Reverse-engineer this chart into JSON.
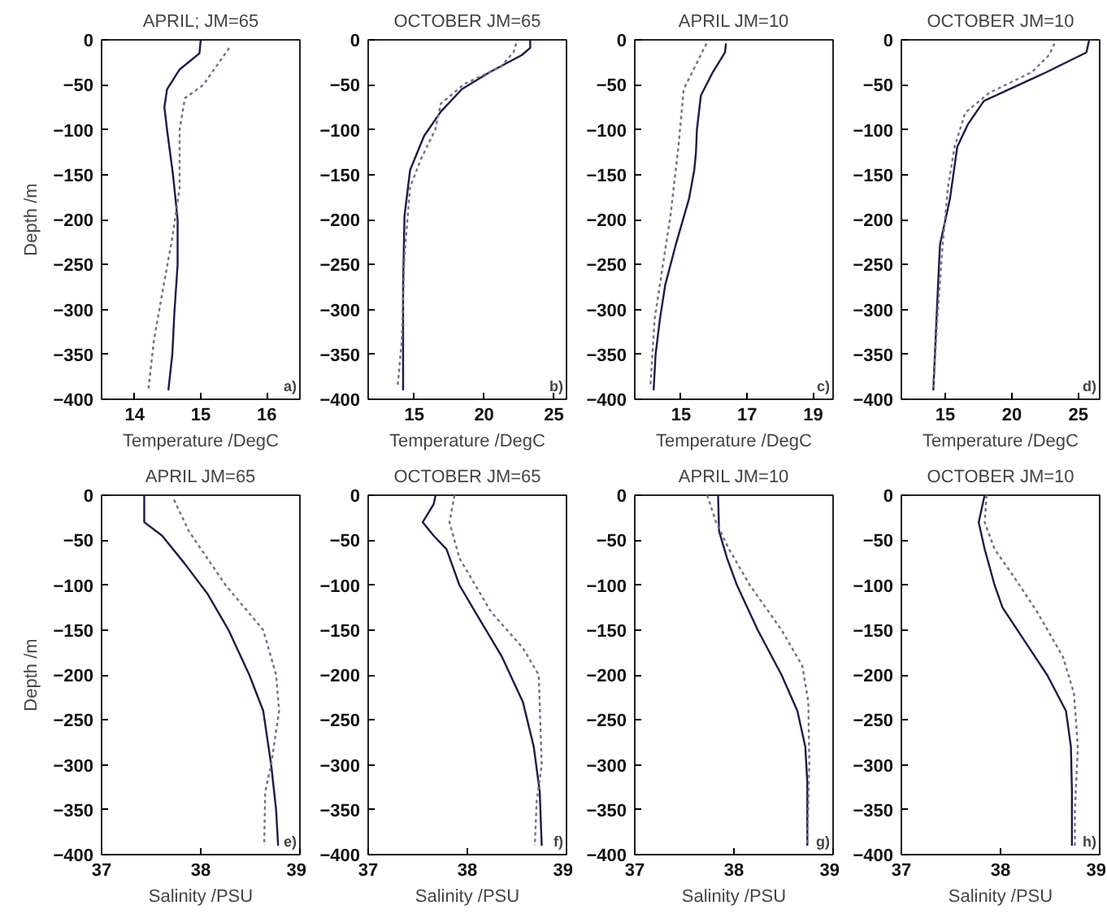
{
  "chart_data": [
    {
      "type": "line",
      "title": "APRIL; JM=65",
      "xlabel": "Temperature /DegC",
      "ylabel": "Depth /m",
      "xlim": [
        13.5,
        16.5
      ],
      "xticks": [
        14,
        15,
        16
      ],
      "ylim": [
        -400,
        0
      ],
      "yticks": [
        0,
        -50,
        -100,
        -150,
        -200,
        -250,
        -300,
        -350,
        -400
      ],
      "grid": false,
      "annotations": [
        "a)"
      ],
      "series": [
        {
          "color": "#1c1c48",
          "line_style": "solid",
          "x": [
            15.0,
            14.98,
            14.68,
            14.49,
            14.45,
            14.49,
            14.58,
            14.65,
            14.65,
            14.6,
            14.57,
            14.51
          ],
          "values": [
            0,
            -15,
            -33,
            -55,
            -75,
            -100,
            -150,
            -200,
            -250,
            -305,
            -350,
            -390
          ]
        },
        {
          "color": "#70708c",
          "line_style": "dotted",
          "x": [
            15.43,
            15.04,
            14.76,
            14.68,
            14.68,
            14.57,
            14.41,
            14.29,
            14.21
          ],
          "values": [
            -9,
            -50,
            -65,
            -100,
            -165,
            -220,
            -285,
            -335,
            -388
          ]
        }
      ]
    },
    {
      "type": "line",
      "title": "OCTOBER JM=65",
      "xlabel": "Temperature /DegC",
      "xlim": [
        11.7,
        25.9
      ],
      "xticks": [
        15,
        20,
        25
      ],
      "ylim": [
        -400,
        0
      ],
      "yticks": [
        0,
        -50,
        -100,
        -150,
        -200,
        -250,
        -300,
        -350,
        -400
      ],
      "grid": false,
      "annotations": [
        "b)"
      ],
      "series": [
        {
          "color": "#1c1c48",
          "line_style": "solid",
          "x": [
            23.3,
            23.3,
            22.7,
            20.4,
            18.4,
            16.9,
            15.7,
            14.7,
            14.3,
            14.2,
            14.2
          ],
          "values": [
            0,
            -9,
            -17,
            -36,
            -55,
            -80,
            -107,
            -145,
            -196,
            -272,
            -390
          ]
        },
        {
          "color": "#70708c",
          "line_style": "dotted",
          "x": [
            22.3,
            22.1,
            21.2,
            18.6,
            16.9,
            16.5,
            15.5,
            14.7,
            14.3,
            14.1,
            13.8
          ],
          "values": [
            -4,
            -14,
            -30,
            -49,
            -71,
            -100,
            -132,
            -164,
            -240,
            -336,
            -387
          ]
        }
      ]
    },
    {
      "type": "line",
      "title": "APRIL JM=10",
      "xlabel": "Temperature /DegC",
      "xlim": [
        13.6,
        19.6
      ],
      "xticks": [
        15,
        17,
        19
      ],
      "ylim": [
        -400,
        0
      ],
      "yticks": [
        0,
        -50,
        -100,
        -150,
        -200,
        -250,
        -300,
        -350,
        -400
      ],
      "grid": false,
      "annotations": [
        "c)"
      ],
      "series": [
        {
          "color": "#1c1c48",
          "line_style": "solid",
          "x": [
            16.36,
            16.33,
            15.96,
            15.6,
            15.48,
            15.45,
            15.4,
            15.24,
            14.84,
            14.52,
            14.36,
            14.23,
            14.17
          ],
          "values": [
            -4,
            -14,
            -36,
            -62,
            -100,
            -126,
            -145,
            -177,
            -228,
            -273,
            -311,
            -350,
            -390
          ]
        },
        {
          "color": "#70708c",
          "line_style": "dotted",
          "x": [
            15.77,
            15.08,
            14.92,
            14.68,
            14.44,
            14.2,
            14.07
          ],
          "values": [
            -4,
            -55,
            -119,
            -196,
            -253,
            -311,
            -387
          ]
        }
      ]
    },
    {
      "type": "line",
      "title": "OCTOBER JM=10",
      "xlabel": "Temperature /DegC",
      "xlim": [
        11.7,
        26.6
      ],
      "xticks": [
        15,
        20,
        25
      ],
      "ylim": [
        -400,
        0
      ],
      "yticks": [
        0,
        -50,
        -100,
        -150,
        -200,
        -250,
        -300,
        -350,
        -400
      ],
      "grid": false,
      "annotations": [
        "d)"
      ],
      "series": [
        {
          "color": "#1c1c48",
          "line_style": "solid",
          "x": [
            25.8,
            25.6,
            22.6,
            17.9,
            16.7,
            15.9,
            15.35,
            14.6,
            14.4,
            14.1
          ],
          "values": [
            -1,
            -14,
            -36,
            -68,
            -94,
            -119,
            -177,
            -228,
            -291,
            -390
          ]
        },
        {
          "color": "#70708c",
          "line_style": "dotted",
          "x": [
            23.2,
            22.8,
            21.5,
            18.3,
            16.5,
            15.7,
            15.2,
            14.8,
            14.4,
            14.1
          ],
          "values": [
            -4,
            -17,
            -36,
            -59,
            -81,
            -119,
            -164,
            -228,
            -311,
            -387
          ]
        }
      ]
    },
    {
      "type": "line",
      "title": "APRIL JM=65",
      "xlabel": "Salinity /PSU",
      "ylabel": "Depth /m",
      "xlim": [
        37,
        39
      ],
      "xticks": [
        37,
        38,
        39
      ],
      "ylim": [
        -400,
        0
      ],
      "yticks": [
        0,
        -50,
        -100,
        -150,
        -200,
        -250,
        -300,
        -350,
        -400
      ],
      "grid": false,
      "annotations": [
        "e)"
      ],
      "series": [
        {
          "color": "#1c1c48",
          "line_style": "solid",
          "x": [
            37.43,
            37.43,
            37.61,
            37.83,
            38.07,
            38.28,
            38.49,
            38.63,
            38.71,
            38.76,
            38.78
          ],
          "values": [
            0,
            -30,
            -45,
            -75,
            -110,
            -150,
            -200,
            -240,
            -300,
            -350,
            -390
          ]
        },
        {
          "color": "#70708c",
          "line_style": "dotted",
          "x": [
            37.73,
            37.88,
            38.25,
            38.63,
            38.76,
            38.79,
            38.71,
            38.65,
            38.64
          ],
          "values": [
            -5,
            -40,
            -100,
            -150,
            -200,
            -240,
            -300,
            -330,
            -390
          ]
        }
      ]
    },
    {
      "type": "line",
      "title": "OCTOBER JM=65",
      "xlabel": "Salinity /PSU",
      "xlim": [
        37,
        39
      ],
      "xticks": [
        37,
        38,
        39
      ],
      "ylim": [
        -400,
        0
      ],
      "yticks": [
        0,
        -50,
        -100,
        -150,
        -200,
        -250,
        -300,
        -350,
        -400
      ],
      "grid": false,
      "annotations": [
        "f)"
      ],
      "series": [
        {
          "color": "#1c1c48",
          "line_style": "solid",
          "x": [
            37.68,
            37.66,
            37.55,
            37.66,
            37.79,
            37.92,
            38.08,
            38.35,
            38.56,
            38.67,
            38.73,
            38.75
          ],
          "values": [
            0,
            -10,
            -30,
            -45,
            -60,
            -100,
            -130,
            -180,
            -230,
            -280,
            -330,
            -390
          ]
        },
        {
          "color": "#70708c",
          "line_style": "dotted",
          "x": [
            37.87,
            37.82,
            37.92,
            38.24,
            38.56,
            38.72,
            38.75,
            38.7,
            38.68
          ],
          "values": [
            0,
            -30,
            -70,
            -130,
            -170,
            -200,
            -300,
            -340,
            -390
          ]
        }
      ]
    },
    {
      "type": "line",
      "title": "APRIL JM=10",
      "xlabel": "Salinity /PSU",
      "xlim": [
        37,
        39
      ],
      "xticks": [
        37,
        38,
        39
      ],
      "ylim": [
        -400,
        0
      ],
      "yticks": [
        0,
        -50,
        -100,
        -150,
        -200,
        -250,
        -300,
        -350,
        -400
      ],
      "grid": false,
      "annotations": [
        "g)"
      ],
      "series": [
        {
          "color": "#1c1c48",
          "line_style": "solid",
          "x": [
            37.84,
            37.85,
            37.93,
            38.03,
            38.24,
            38.48,
            38.64,
            38.72,
            38.74,
            38.74
          ],
          "values": [
            0,
            -40,
            -70,
            -100,
            -150,
            -200,
            -240,
            -280,
            -320,
            -390
          ]
        },
        {
          "color": "#70708c",
          "line_style": "dotted",
          "x": [
            37.73,
            37.82,
            37.95,
            38.16,
            38.48,
            38.69,
            38.75,
            38.76,
            38.74
          ],
          "values": [
            0,
            -30,
            -60,
            -100,
            -150,
            -190,
            -230,
            -300,
            -390
          ]
        }
      ]
    },
    {
      "type": "line",
      "title": "OCTOBER JM=10",
      "xlabel": "Salinity /PSU",
      "xlim": [
        37,
        39
      ],
      "xticks": [
        37,
        38,
        39
      ],
      "ylim": [
        -400,
        0
      ],
      "yticks": [
        0,
        -50,
        -100,
        -150,
        -200,
        -250,
        -300,
        -350,
        -400
      ],
      "grid": false,
      "annotations": [
        "h)"
      ],
      "series": [
        {
          "color": "#1c1c48",
          "line_style": "solid",
          "x": [
            37.84,
            37.81,
            37.78,
            37.84,
            37.94,
            38.02,
            38.23,
            38.47,
            38.66,
            38.71,
            38.72,
            38.72
          ],
          "values": [
            0,
            -15,
            -30,
            -60,
            -100,
            -125,
            -160,
            -200,
            -240,
            -280,
            -330,
            -390
          ]
        },
        {
          "color": "#70708c",
          "line_style": "dotted",
          "x": [
            37.86,
            37.84,
            37.94,
            38.13,
            38.37,
            38.63,
            38.74,
            38.78,
            38.75,
            38.75
          ],
          "values": [
            0,
            -30,
            -60,
            -90,
            -130,
            -180,
            -220,
            -280,
            -350,
            -390
          ]
        }
      ]
    }
  ]
}
